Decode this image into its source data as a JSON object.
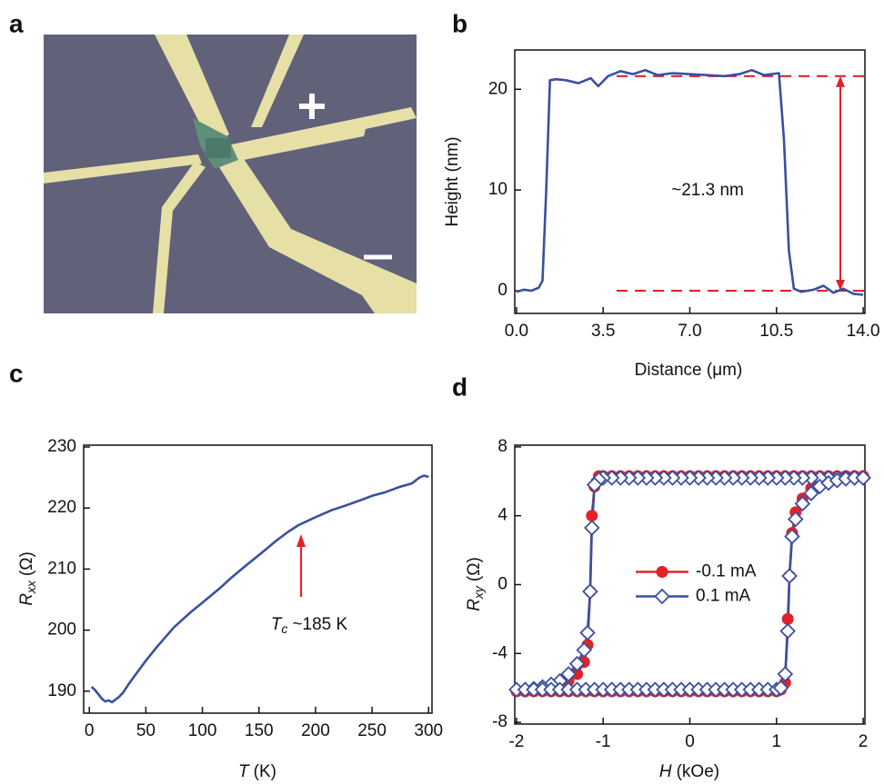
{
  "panel_labels": [
    "a",
    "b",
    "c",
    "d"
  ],
  "chart_data": [
    {
      "type": "line",
      "color": "#3a4fa0",
      "xlabel": "Distance (μm)",
      "ylabel": "Height (nm)",
      "x": [
        0,
        0.3,
        0.6,
        0.9,
        1.05,
        1.2,
        1.35,
        1.6,
        2.0,
        2.5,
        3.0,
        3.3,
        3.7,
        4.2,
        4.7,
        5.2,
        5.7,
        6.3,
        7.0,
        7.7,
        8.4,
        9.0,
        9.5,
        10.0,
        10.6,
        10.8,
        11.0,
        11.2,
        11.5,
        12.0,
        12.4,
        12.8,
        13.2,
        13.6,
        14.0
      ],
      "values": [
        -0.1,
        0.1,
        0.0,
        0.3,
        1.0,
        10.0,
        20.9,
        21.0,
        20.9,
        20.6,
        21.1,
        20.3,
        21.3,
        21.8,
        21.5,
        21.9,
        21.4,
        21.6,
        21.5,
        21.4,
        21.3,
        21.5,
        21.9,
        21.4,
        21.6,
        15.0,
        4.0,
        0.2,
        -0.1,
        0.1,
        0.5,
        -0.2,
        0.2,
        -0.3,
        -0.4
      ],
      "xlim": [
        -0.07,
        14.07
      ],
      "ylim": [
        -2.25,
        23.9
      ],
      "xticks": [
        {
          "value": 0,
          "label": "0.0"
        },
        3.5,
        {
          "value": 7,
          "label": "7.0"
        },
        10.5,
        {
          "value": 14,
          "label": "14.0"
        }
      ],
      "yticks": [
        0,
        10,
        20
      ],
      "reference_lines": [
        21.3,
        0
      ],
      "reference_color": "#e32228",
      "annotation": "~21.3 nm"
    },
    {
      "type": "line",
      "color": "#3a4fa0",
      "xlabel": {
        "main": "T",
        "unit": "(K)"
      },
      "ylabel": {
        "main": "R",
        "sub": "xx",
        "unit": "(Ω)"
      },
      "x": [
        2,
        5,
        8,
        11,
        14,
        17,
        20,
        23,
        26,
        30,
        35,
        40,
        50,
        60,
        75,
        90,
        100,
        115,
        125,
        140,
        150,
        165,
        175,
        185,
        200,
        215,
        225,
        240,
        250,
        262,
        275,
        285,
        292,
        296,
        300
      ],
      "values": [
        190.7,
        190.2,
        189.5,
        188.8,
        188.3,
        188.5,
        188.2,
        188.6,
        189.0,
        189.8,
        191.2,
        192.5,
        195.0,
        197.3,
        200.5,
        203.0,
        204.5,
        206.8,
        208.5,
        210.8,
        212.3,
        214.6,
        216.0,
        217.2,
        218.5,
        219.7,
        220.3,
        221.3,
        222.0,
        222.6,
        223.5,
        224.0,
        225.0,
        225.3,
        225.1
      ],
      "xlim": [
        -5,
        303
      ],
      "ylim": [
        186.4,
        230.3
      ],
      "xticks": [
        0,
        50,
        100,
        150,
        200,
        250,
        300
      ],
      "yticks": [
        190,
        200,
        210,
        220,
        230
      ],
      "annotation": {
        "main": "T",
        "sub": "c",
        "text": "~185 K"
      },
      "annotation_color": "#e32228"
    },
    {
      "type": "line",
      "xlabel": {
        "main": "H",
        "unit": "(kOe)"
      },
      "ylabel": {
        "main": "R",
        "sub": "xy",
        "unit": "(Ω)"
      },
      "x": [
        2,
        1.9,
        1.8,
        1.7,
        1.6,
        1.5,
        1.4,
        1.3,
        1.2,
        1.1,
        1,
        0.9,
        0.8,
        0.7,
        0.6,
        0.5,
        0.4,
        0.3,
        0.2,
        0.1,
        0,
        -0.1,
        -0.2,
        -0.3,
        -0.4,
        -0.5,
        -0.6,
        -0.7,
        -0.8,
        -0.9,
        -1,
        -1.05,
        -1.1,
        -1.13,
        -1.15,
        -1.18,
        -1.22,
        -1.3,
        -1.4,
        -1.5,
        -1.6,
        -1.7,
        -1.8,
        -1.9,
        -2,
        -1.9,
        -1.8,
        -1.7,
        -1.6,
        -1.5,
        -1.4,
        -1.3,
        -1.2,
        -1.1,
        -1,
        -0.9,
        -0.8,
        -0.7,
        -0.6,
        -0.5,
        -0.4,
        -0.3,
        -0.2,
        -0.1,
        0,
        0.1,
        0.2,
        0.3,
        0.4,
        0.5,
        0.6,
        0.7,
        0.8,
        0.9,
        1,
        1.05,
        1.1,
        1.13,
        1.15,
        1.18,
        1.22,
        1.3,
        1.4,
        1.5,
        1.6,
        1.7,
        1.8,
        1.9,
        2
      ],
      "series": [
        {
          "name": "-0.1 mA",
          "color": "#e32228",
          "marker": "circle",
          "marker_fill": "#e32228",
          "values": [
            6.3,
            6.3,
            6.3,
            6.3,
            6.3,
            6.3,
            6.3,
            6.3,
            6.3,
            6.3,
            6.3,
            6.3,
            6.3,
            6.3,
            6.3,
            6.3,
            6.3,
            6.3,
            6.3,
            6.3,
            6.3,
            6.3,
            6.3,
            6.3,
            6.3,
            6.3,
            6.3,
            6.3,
            6.3,
            6.3,
            6.3,
            6.3,
            5.7,
            4.0,
            -0.4,
            -3.5,
            -4.5,
            -5.2,
            -5.6,
            -5.9,
            -6.0,
            -6.1,
            -6.15,
            -6.2,
            -6.2,
            -6.2,
            -6.2,
            -6.2,
            -6.2,
            -6.2,
            -6.2,
            -6.2,
            -6.2,
            -6.2,
            -6.2,
            -6.2,
            -6.2,
            -6.2,
            -6.2,
            -6.2,
            -6.2,
            -6.2,
            -6.2,
            -6.2,
            -6.2,
            -6.2,
            -6.2,
            -6.2,
            -6.2,
            -6.2,
            -6.2,
            -6.2,
            -6.2,
            -6.2,
            -6.2,
            -6.1,
            -5.7,
            -2.0,
            0.5,
            3.0,
            4.2,
            5.0,
            5.6,
            5.9,
            6.1,
            6.2,
            6.3,
            6.3,
            6.3
          ]
        },
        {
          "name": "0.1 mA",
          "color": "#3a4fa0",
          "marker": "diamond",
          "marker_fill": "#ffffff",
          "values": [
            6.2,
            6.2,
            6.2,
            6.2,
            6.2,
            6.2,
            6.2,
            6.2,
            6.2,
            6.2,
            6.2,
            6.2,
            6.2,
            6.2,
            6.2,
            6.2,
            6.2,
            6.2,
            6.2,
            6.2,
            6.2,
            6.2,
            6.2,
            6.2,
            6.2,
            6.2,
            6.2,
            6.2,
            6.2,
            6.2,
            6.2,
            6.1,
            5.8,
            3.3,
            -0.4,
            -2.8,
            -3.8,
            -4.6,
            -5.2,
            -5.6,
            -5.8,
            -5.95,
            -6.05,
            -6.1,
            -6.1,
            -6.1,
            -6.1,
            -6.1,
            -6.1,
            -6.1,
            -6.1,
            -6.1,
            -6.1,
            -6.1,
            -6.1,
            -6.1,
            -6.1,
            -6.1,
            -6.1,
            -6.1,
            -6.1,
            -6.1,
            -6.1,
            -6.1,
            -6.1,
            -6.1,
            -6.1,
            -6.1,
            -6.1,
            -6.1,
            -6.1,
            -6.1,
            -6.1,
            -6.1,
            -6.1,
            -6.0,
            -5.2,
            -2.7,
            0.5,
            2.8,
            3.8,
            4.7,
            5.3,
            5.7,
            5.9,
            6.05,
            6.15,
            6.2,
            6.2
          ]
        }
      ],
      "xlim": [
        -2.02,
        2.02
      ],
      "ylim": [
        -8.1,
        8.1
      ],
      "xticks": [
        -2,
        -1,
        0,
        1,
        2
      ],
      "yticks": [
        8,
        4,
        0,
        -4,
        -8
      ],
      "legend": "center"
    }
  ]
}
